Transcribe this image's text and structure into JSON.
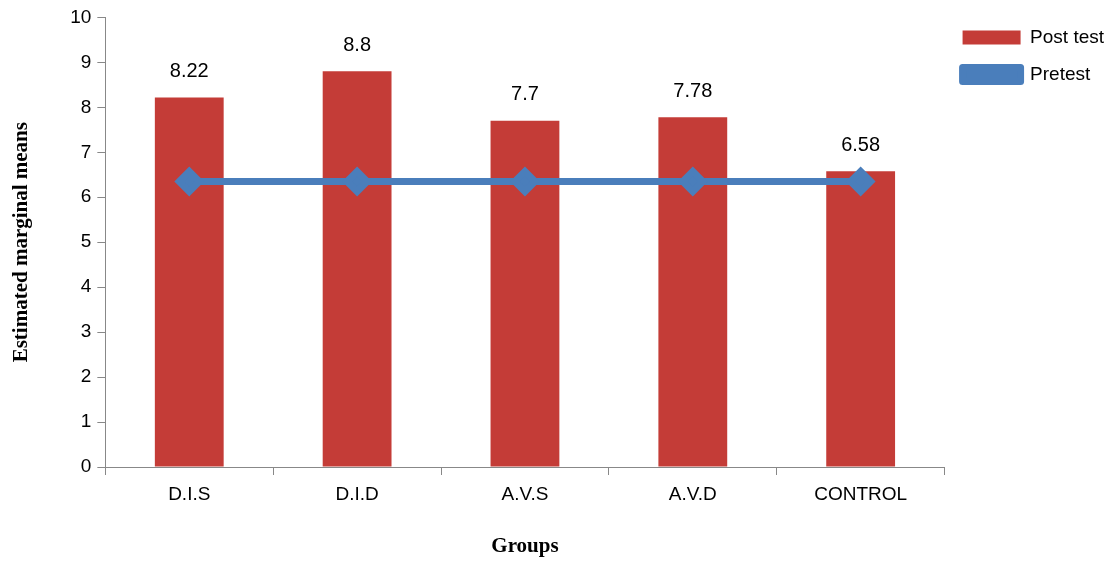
{
  "chart_data": {
    "type": "bar",
    "xlabel": "Groups",
    "ylabel": "Estimated marginal means",
    "categories": [
      "D.I.S",
      "D.I.D",
      "A.V.S",
      "A.V.D",
      "CONTROL"
    ],
    "series": [
      {
        "name": "Post test",
        "color": "#c43c37",
        "values": [
          8.22,
          8.8,
          7.7,
          7.78,
          6.58
        ],
        "value_labels": [
          "8.22",
          "8.8",
          "7.7",
          "7.78",
          "6.58"
        ]
      },
      {
        "name": "Pretest",
        "type": "line",
        "color": "#4a7ebb",
        "values": [
          6.35,
          6.35,
          6.35,
          6.35,
          6.35
        ]
      }
    ],
    "ylim": [
      0,
      10
    ],
    "yticks": [
      0,
      1,
      2,
      3,
      4,
      5,
      6,
      7,
      8,
      9,
      10
    ],
    "grid": false,
    "legend": "top right",
    "marker": "diamond"
  }
}
